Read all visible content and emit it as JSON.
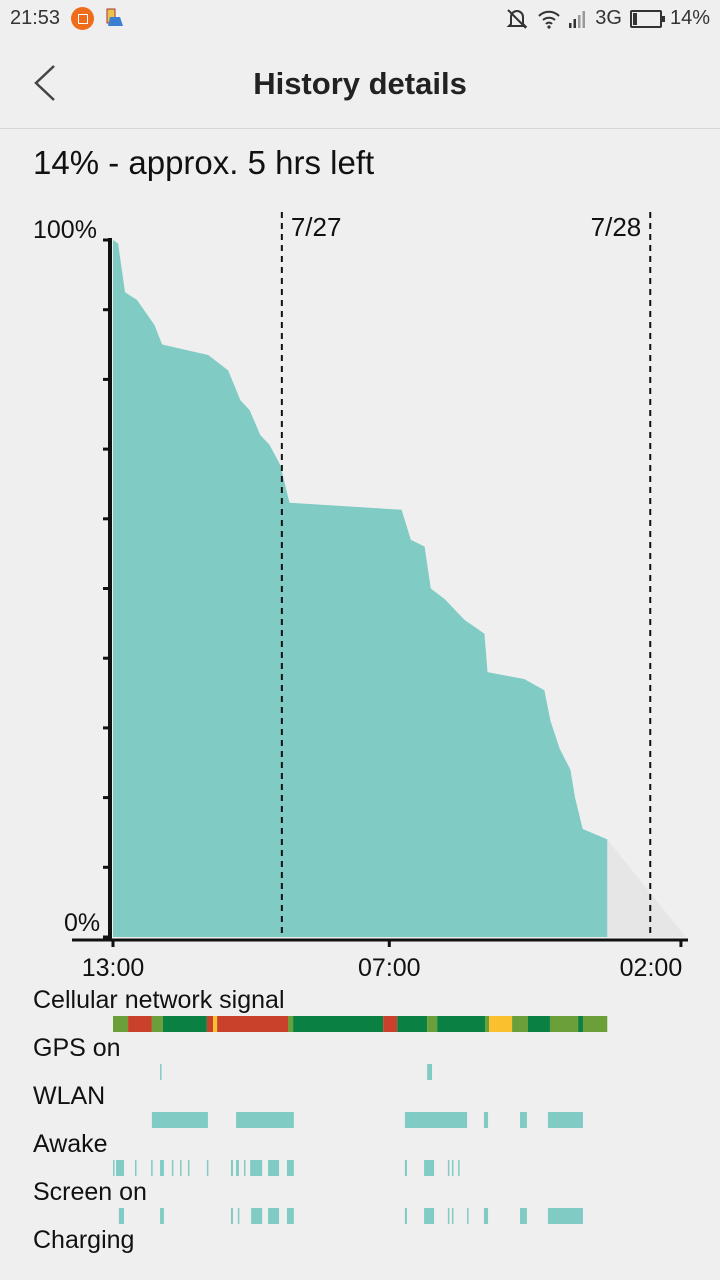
{
  "status_bar": {
    "time": "21:53",
    "network": "3G",
    "battery": "14%",
    "icons": [
      "crop-app-icon",
      "notification-app-icon",
      "mute-icon",
      "wifi-icon",
      "signal-icon",
      "battery-icon"
    ]
  },
  "header": {
    "title": "History details",
    "back_icon": "back-arrow-icon"
  },
  "summary": "14% - approx. 5 hrs left",
  "colors": {
    "fill": "#80cbc4",
    "projection": "#e6e6e6",
    "signal_good": "#0a8043",
    "signal_ok": "#6a9f3a",
    "signal_moderate": "#fbc02d",
    "signal_poor": "#c9402b"
  },
  "chart_data": {
    "type": "area",
    "ylabels": {
      "top": "100%",
      "bottom": "0%"
    },
    "ylim": [
      0,
      100
    ],
    "xlim": [
      "7/26 13:00",
      "7/28 02:00"
    ],
    "xticks": [
      "13:00",
      "07:00",
      "02:00"
    ],
    "date_markers": [
      {
        "label": "7/27",
        "time": "7/27 00:00"
      },
      {
        "label": "7/28",
        "time": "7/28 00:00"
      }
    ],
    "points": [
      [
        "7/26 13:00",
        100
      ],
      [
        "7/26 13:20",
        99.5
      ],
      [
        "7/26 13:47",
        92.5
      ],
      [
        "7/26 14:34",
        91.4
      ],
      [
        "7/26 15:42",
        87.8
      ],
      [
        "7/26 16:12",
        85
      ],
      [
        "7/26 19:12",
        83.5
      ],
      [
        "7/26 20:30",
        81.3
      ],
      [
        "7/26 21:18",
        77
      ],
      [
        "7/26 21:54",
        75.6
      ],
      [
        "7/26 22:36",
        72
      ],
      [
        "7/26 23:12",
        70.6
      ],
      [
        "7/26 23:54",
        67.7
      ],
      [
        "7/27 00:30",
        62.3
      ],
      [
        "7/27 07:48",
        61.3
      ],
      [
        "7/27 08:24",
        57
      ],
      [
        "7/27 09:18",
        56
      ],
      [
        "7/27 09:42",
        50
      ],
      [
        "7/27 10:36",
        48.5
      ],
      [
        "7/27 11:54",
        45.5
      ],
      [
        "7/27 13:12",
        43.5
      ],
      [
        "7/27 13:24",
        38
      ],
      [
        "7/27 15:48",
        37
      ],
      [
        "7/27 17:06",
        35.4
      ],
      [
        "7/27 17:30",
        31
      ],
      [
        "7/27 18:06",
        27
      ],
      [
        "7/27 18:48",
        24
      ],
      [
        "7/27 19:06",
        20
      ],
      [
        "7/27 19:36",
        15.5
      ],
      [
        "7/27 21:12",
        14
      ]
    ],
    "projection": [
      [
        "7/27 21:12",
        14
      ],
      [
        "7/28 02:18",
        0
      ]
    ]
  },
  "strips": [
    {
      "label": "Cellular network signal",
      "segments": [
        [
          "7/26 13:00",
          "7/26 13:59",
          "signal_ok"
        ],
        [
          "7/26 13:59",
          "7/26 15:32",
          "signal_poor"
        ],
        [
          "7/26 15:32",
          "7/26 16:15",
          "signal_ok"
        ],
        [
          "7/26 16:15",
          "7/26 19:07",
          "signal_good"
        ],
        [
          "7/26 19:07",
          "7/26 19:31",
          "signal_poor"
        ],
        [
          "7/26 19:31",
          "7/26 19:47",
          "signal_moderate"
        ],
        [
          "7/26 19:47",
          "7/27 00:24",
          "signal_poor"
        ],
        [
          "7/27 00:24",
          "7/27 00:44",
          "signal_ok"
        ],
        [
          "7/27 00:44",
          "7/27 06:36",
          "signal_good"
        ],
        [
          "7/27 06:36",
          "7/27 07:31",
          "signal_poor"
        ],
        [
          "7/27 07:31",
          "7/27 09:28",
          "signal_good"
        ],
        [
          "7/27 09:28",
          "7/27 10:07",
          "signal_ok"
        ],
        [
          "7/27 10:07",
          "7/27 13:14",
          "signal_good"
        ],
        [
          "7/27 13:14",
          "7/27 13:30",
          "signal_ok"
        ],
        [
          "7/27 13:30",
          "7/27 15:00",
          "signal_moderate"
        ],
        [
          "7/27 15:00",
          "7/27 16:02",
          "signal_ok"
        ],
        [
          "7/27 16:02",
          "7/27 17:28",
          "signal_good"
        ],
        [
          "7/27 17:28",
          "7/27 19:18",
          "signal_ok"
        ],
        [
          "7/27 19:18",
          "7/27 19:37",
          "signal_good"
        ],
        [
          "7/27 19:37",
          "7/27 21:12",
          "signal_ok"
        ]
      ]
    },
    {
      "label": "GPS on",
      "segments": [
        [
          "7/26 16:04",
          "7/26 16:08"
        ],
        [
          "7/27 09:28",
          "7/27 09:47"
        ]
      ]
    },
    {
      "label": "WLAN",
      "segments": [
        [
          "7/26 15:32",
          "7/26 19:11"
        ],
        [
          "7/26 21:01",
          "7/27 00:47"
        ],
        [
          "7/27 08:01",
          "7/27 12:04"
        ],
        [
          "7/27 13:10",
          "7/27 13:26"
        ],
        [
          "7/27 15:31",
          "7/27 15:58"
        ],
        [
          "7/27 17:20",
          "7/27 19:37"
        ]
      ]
    },
    {
      "label": "Awake",
      "segments": [
        [
          "7/26 13:00",
          "7/26 13:04"
        ],
        [
          "7/26 13:12",
          "7/26 13:43"
        ],
        [
          "7/26 14:26",
          "7/26 14:30"
        ],
        [
          "7/26 15:29",
          "7/26 15:32"
        ],
        [
          "7/26 16:04",
          "7/26 16:19"
        ],
        [
          "7/26 16:50",
          "7/26 16:54"
        ],
        [
          "7/26 17:22",
          "7/26 17:26"
        ],
        [
          "7/26 17:53",
          "7/26 17:57"
        ],
        [
          "7/26 19:07",
          "7/26 19:11"
        ],
        [
          "7/26 20:41",
          "7/26 20:49"
        ],
        [
          "7/26 21:01",
          "7/26 21:12"
        ],
        [
          "7/26 21:32",
          "7/26 21:36"
        ],
        [
          "7/26 21:56",
          "7/26 22:43"
        ],
        [
          "7/26 23:06",
          "7/26 23:49"
        ],
        [
          "7/27 00:20",
          "7/27 00:47"
        ],
        [
          "7/27 08:01",
          "7/27 08:09"
        ],
        [
          "7/27 09:16",
          "7/27 09:55"
        ],
        [
          "7/27 10:49",
          "7/27 10:53"
        ],
        [
          "7/27 11:05",
          "7/27 11:09"
        ],
        [
          "7/27 11:29",
          "7/27 11:33"
        ]
      ]
    },
    {
      "label": "Screen on",
      "segments": [
        [
          "7/26 13:23",
          "7/26 13:43"
        ],
        [
          "7/26 16:04",
          "7/26 16:19"
        ],
        [
          "7/26 20:41",
          "7/26 20:49"
        ],
        [
          "7/26 21:08",
          "7/26 21:12"
        ],
        [
          "7/26 22:00",
          "7/26 22:43"
        ],
        [
          "7/26 23:06",
          "7/26 23:49"
        ],
        [
          "7/27 00:20",
          "7/27 00:47"
        ],
        [
          "7/27 08:01",
          "7/27 08:09"
        ],
        [
          "7/27 09:16",
          "7/27 09:55"
        ],
        [
          "7/27 10:49",
          "7/27 10:53"
        ],
        [
          "7/27 11:05",
          "7/27 11:09"
        ],
        [
          "7/27 12:04",
          "7/27 12:08"
        ],
        [
          "7/27 13:10",
          "7/27 13:26"
        ],
        [
          "7/27 15:31",
          "7/27 15:58"
        ],
        [
          "7/27 17:20",
          "7/27 19:37"
        ]
      ]
    },
    {
      "label": "Charging",
      "segments": []
    }
  ]
}
